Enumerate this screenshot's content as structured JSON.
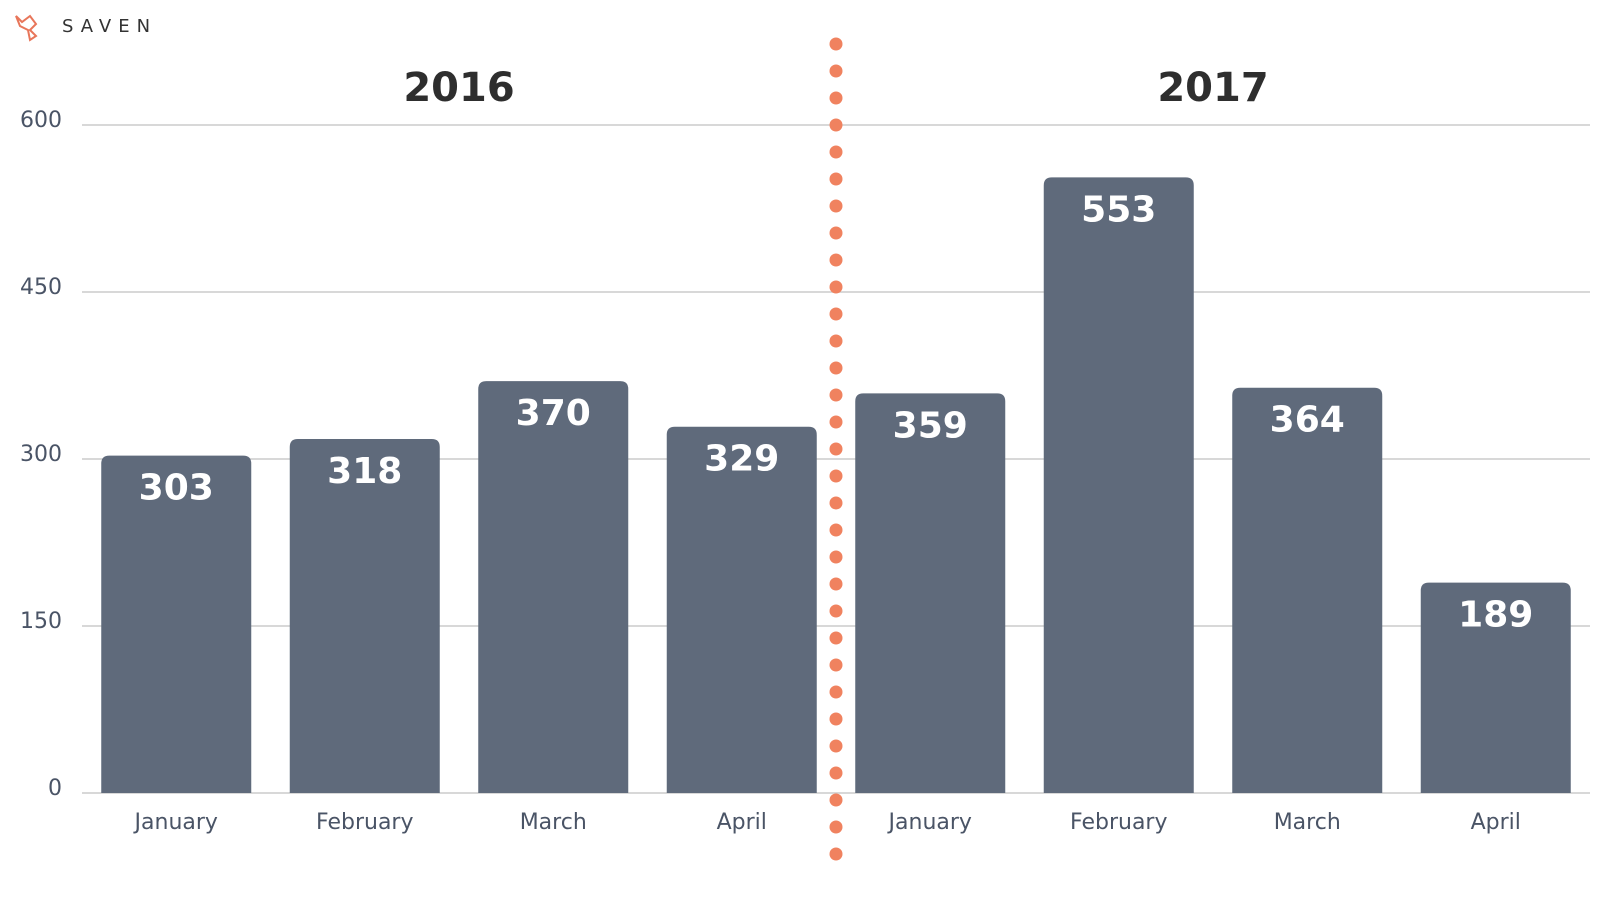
{
  "logo": "SAVEN",
  "chart_data": {
    "type": "bar",
    "groups": [
      "2016",
      "2017"
    ],
    "categories": [
      "January",
      "February",
      "March",
      "April",
      "January",
      "February",
      "March",
      "April"
    ],
    "values": [
      303,
      318,
      370,
      329,
      359,
      553,
      364,
      189
    ],
    "color": "#5f6a7b",
    "ylim": [
      0,
      600
    ],
    "yticks": [
      0,
      150,
      300,
      450,
      600
    ],
    "grid": true
  }
}
